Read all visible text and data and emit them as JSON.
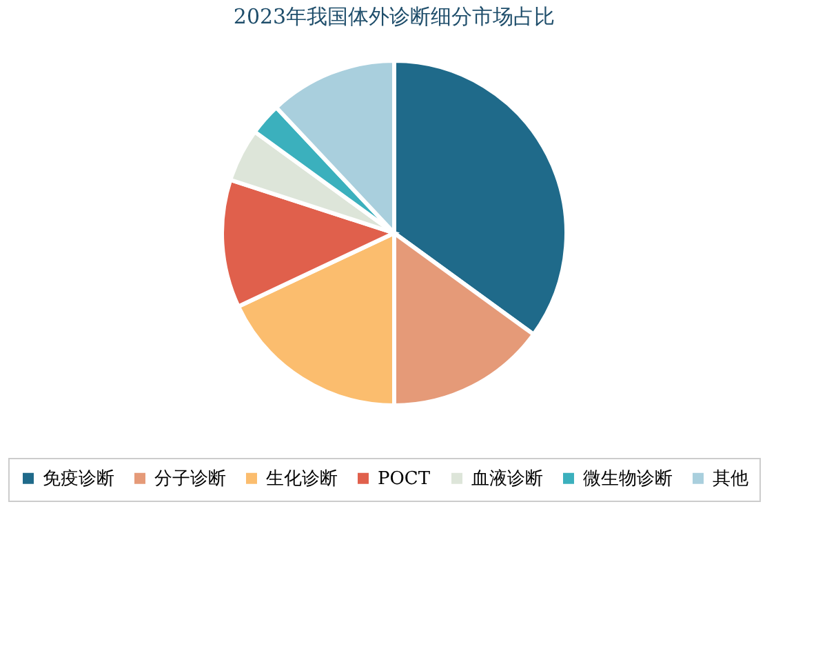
{
  "chart_data": {
    "type": "pie",
    "title": "2023年我国体外诊断细分市场占比",
    "categories": [
      "免疫诊断",
      "分子诊断",
      "生化诊断",
      "POCT",
      "血液诊断",
      "微生物诊断",
      "其他"
    ],
    "values": [
      35,
      15,
      18,
      12,
      5,
      3,
      12
    ],
    "colors": [
      "#1f6a8a",
      "#e59a78",
      "#fbbd6e",
      "#e0604c",
      "#dde5d9",
      "#3bb0bd",
      "#a9cfdd"
    ],
    "legend": "bottom"
  }
}
